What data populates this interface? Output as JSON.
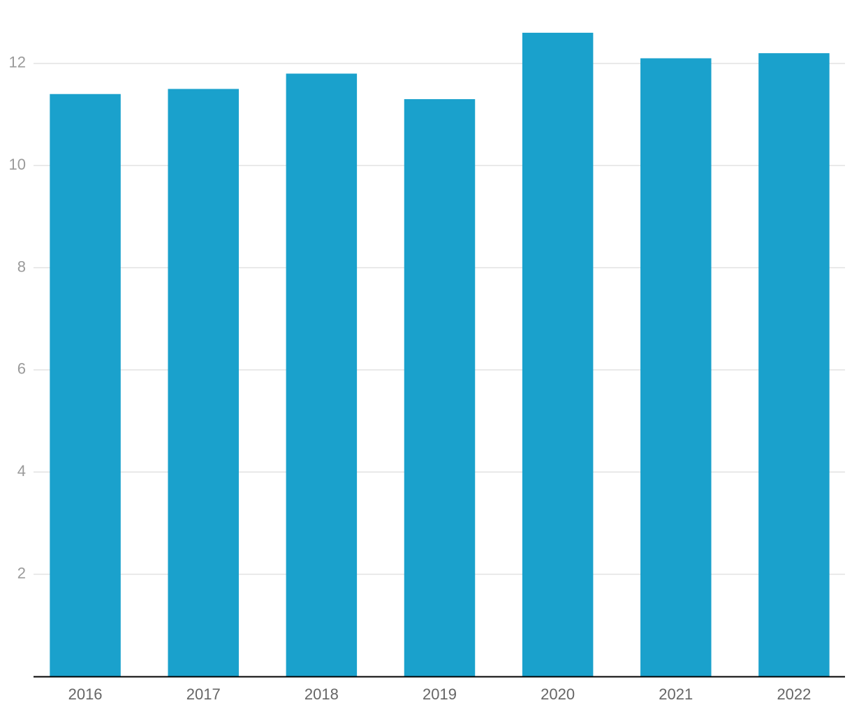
{
  "chart_data": {
    "type": "bar",
    "categories": [
      "2016",
      "2017",
      "2018",
      "2019",
      "2020",
      "2021",
      "2022"
    ],
    "values": [
      11.4,
      11.5,
      11.8,
      11.3,
      12.6,
      12.1,
      12.2
    ],
    "color": "#1aa1cc",
    "ylim": [
      0,
      13.2
    ],
    "yticks": [
      2,
      4,
      6,
      8,
      10,
      12
    ],
    "grid": true
  }
}
